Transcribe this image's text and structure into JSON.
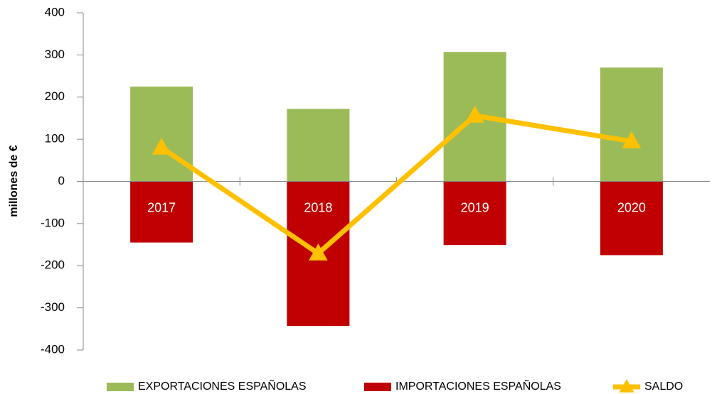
{
  "chart_data": {
    "type": "bar",
    "categories": [
      "2017",
      "2018",
      "2019",
      "2020"
    ],
    "y_label": "millones de €",
    "series": [
      {
        "name": "EXPORTACIONES ESPAÑOLAS",
        "color": "#9bbb59",
        "type": "bar",
        "values": [
          225,
          172,
          307,
          270
        ]
      },
      {
        "name": "IMPORTACIONES ESPAÑOLAS",
        "color": "#c00000",
        "type": "bar",
        "values": [
          -145,
          -343,
          -151,
          -175
        ]
      },
      {
        "name": "SALDO",
        "color": "#ffc000",
        "type": "line",
        "values": [
          80,
          -171,
          156,
          95
        ]
      }
    ],
    "ylim": [
      -400,
      400
    ],
    "yticks": [
      -400,
      -300,
      -200,
      -100,
      0,
      100,
      200,
      300,
      400
    ],
    "grid": false,
    "legend": "bottom"
  }
}
